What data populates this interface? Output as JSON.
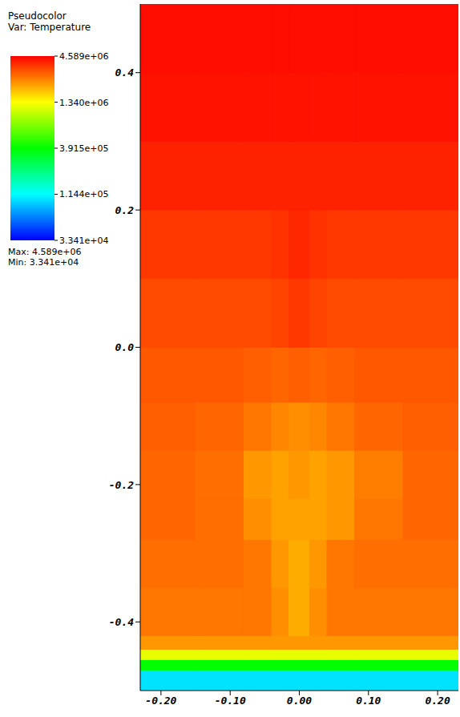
{
  "chart_data": {
    "type": "heatmap",
    "legend_title": "Pseudocolor",
    "variable": "Var: Temperature",
    "max_text": "Max: 4.589e+06",
    "min_text": "Min: 3.341e+04",
    "xlim": [
      -0.23,
      0.23
    ],
    "xticks": [
      {
        "value": -0.2,
        "label": "-0.20"
      },
      {
        "value": -0.1,
        "label": "-0.10"
      },
      {
        "value": 0,
        "label": "0.00"
      },
      {
        "value": 0.1,
        "label": "0.10"
      },
      {
        "value": 0.2,
        "label": "0.20"
      }
    ],
    "ylim": [
      -0.5,
      0.5
    ],
    "yticks": [
      {
        "value": -0.4,
        "label": "-0.4"
      },
      {
        "value": -0.2,
        "label": "-0.2"
      },
      {
        "value": 0,
        "label": "0.0"
      },
      {
        "value": 0.2,
        "label": "0.2"
      },
      {
        "value": 0.4,
        "label": "0.4"
      }
    ],
    "x_edges": [
      -0.23,
      -0.15,
      -0.08,
      -0.04,
      -0.015,
      0.015,
      0.04,
      0.08,
      0.15,
      0.23
    ],
    "y_edges": [
      -0.5,
      -0.47,
      -0.455,
      -0.44,
      -0.42,
      -0.35,
      -0.28,
      -0.22,
      -0.15,
      -0.08,
      0.0,
      0.1,
      0.2,
      0.3,
      0.4,
      0.5
    ],
    "cells": [
      [
        100000,
        100000,
        100000,
        100000,
        100000,
        100000,
        100000,
        100000,
        100000
      ],
      [
        391500,
        391500,
        391500,
        391500,
        391500,
        391500,
        391500,
        391500,
        391500
      ],
      [
        1200000,
        1200000,
        1200000,
        1200000,
        1200000,
        1200000,
        1200000,
        1200000,
        1200000
      ],
      [
        2200000,
        2200000,
        2200000,
        2200000,
        2200000,
        2200000,
        2200000,
        2200000,
        2200000
      ],
      [
        2600000,
        2600000,
        2600000,
        2300000,
        2000000,
        2300000,
        2600000,
        2600000,
        2600000
      ],
      [
        2700000,
        2700000,
        2600000,
        2200000,
        2000000,
        2200000,
        2600000,
        2700000,
        2700000
      ],
      [
        2800000,
        2700000,
        2300000,
        2100000,
        2100000,
        2100000,
        2200000,
        2600000,
        2800000
      ],
      [
        2800000,
        2700000,
        2200000,
        2100000,
        2200000,
        2100000,
        2200000,
        2500000,
        2800000
      ],
      [
        2900000,
        2800000,
        2600000,
        2400000,
        2300000,
        2400000,
        2600000,
        2800000,
        2900000
      ],
      [
        3000000,
        3000000,
        2900000,
        2800000,
        2900000,
        2800000,
        2900000,
        3000000,
        3000000
      ],
      [
        3200000,
        3200000,
        3200000,
        3300000,
        3500000,
        3300000,
        3200000,
        3200000,
        3200000
      ],
      [
        3500000,
        3500000,
        3500000,
        3600000,
        3800000,
        3600000,
        3500000,
        3500000,
        3500000
      ],
      [
        3900000,
        3900000,
        3900000,
        3900000,
        3900000,
        3900000,
        3900000,
        3900000,
        3900000
      ],
      [
        4200000,
        4200000,
        4200000,
        4200000,
        4200000,
        4200000,
        4200000,
        4200000,
        4200000
      ],
      [
        4300000,
        4300000,
        4300000,
        4300000,
        4300000,
        4300000,
        4300000,
        4300000,
        4300000
      ]
    ],
    "colorbar": {
      "range": [
        33410,
        4589000
      ],
      "scale": "log",
      "ticks": [
        {
          "value": 4589000,
          "label": "4.589e+06"
        },
        {
          "value": 1340000,
          "label": "1.340e+06"
        },
        {
          "value": 391500,
          "label": "3.915e+05"
        },
        {
          "value": 114400,
          "label": "1.144e+05"
        },
        {
          "value": 33410,
          "label": "3.341e+04"
        }
      ]
    }
  }
}
